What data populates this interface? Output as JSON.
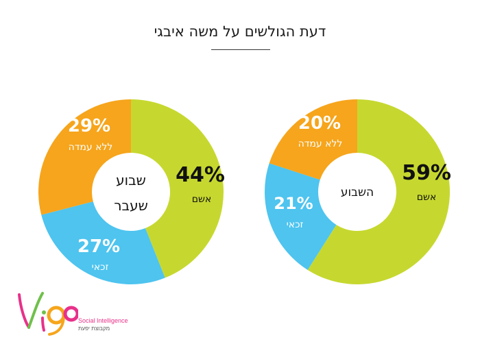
{
  "title": "דעת הגולשים על משה איבגי",
  "chart_data": [
    {
      "type": "pie",
      "variant": "donut",
      "center_label_lines": [
        "שבוע",
        "שעבר"
      ],
      "slices": [
        {
          "label": "אשם",
          "value": 44,
          "display": "44%",
          "color": "#c6d82f"
        },
        {
          "label": "זכאי",
          "value": 27,
          "display": "27%",
          "color": "#4ec4ef"
        },
        {
          "label": "ללא עמדה",
          "value": 29,
          "display": "29%",
          "color": "#f6a51c"
        }
      ]
    },
    {
      "type": "pie",
      "variant": "donut",
      "center_label_lines": [
        "השבוע"
      ],
      "slices": [
        {
          "label": "אשם",
          "value": 59,
          "display": "59%",
          "color": "#c6d82f"
        },
        {
          "label": "זכאי",
          "value": 21,
          "display": "21%",
          "color": "#4ec4ef"
        },
        {
          "label": "ללא עמדה",
          "value": 20,
          "display": "20%",
          "color": "#f6a51c"
        }
      ]
    }
  ],
  "logo": {
    "icon": "vigo-logo-icon",
    "tagline": "Social Intelligence",
    "subtitle": "מקבוצת יפעת"
  }
}
